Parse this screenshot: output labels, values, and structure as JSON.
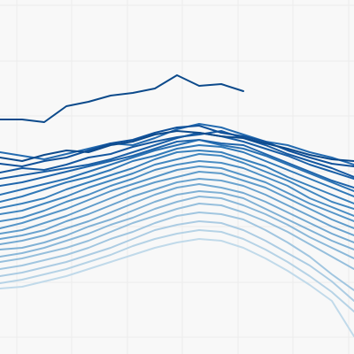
{
  "chart_data": {
    "type": "line",
    "x": [
      0,
      25,
      50,
      75,
      100,
      125,
      150,
      175,
      200,
      225,
      250,
      275,
      300,
      325,
      350,
      375,
      400
    ],
    "xlim": [
      0,
      400
    ],
    "ylim": [
      0,
      400
    ],
    "xticks": [
      19,
      81,
      144,
      206,
      269,
      331,
      394
    ],
    "yticks": [
      19,
      81,
      144,
      206,
      269,
      331,
      394
    ],
    "grid": true,
    "series": [
      {
        "color": "#0c4a8b",
        "values": [
          265,
          265,
          262,
          280,
          285,
          292,
          295,
          300,
          315,
          303,
          305,
          297,
          null,
          null,
          null,
          null,
          null
        ]
      },
      {
        "color": "#0d4a8c",
        "values": [
          222,
          218,
          225,
          230,
          228,
          236,
          240,
          248,
          252,
          250,
          246,
          244,
          238,
          232,
          225,
          220,
          218
        ]
      },
      {
        "color": "#10519a",
        "values": [
          215,
          212,
          218,
          222,
          230,
          238,
          242,
          250,
          256,
          258,
          250,
          246,
          240,
          230,
          222,
          215,
          212
        ]
      },
      {
        "color": "#1558a0",
        "values": [
          205,
          210,
          208,
          214,
          222,
          226,
          234,
          240,
          245,
          248,
          252,
          244,
          236,
          226,
          218,
          210,
          200
        ]
      },
      {
        "color": "#1a5fa6",
        "values": [
          198,
          202,
          206,
          210,
          214,
          220,
          228,
          236,
          244,
          250,
          246,
          240,
          232,
          224,
          214,
          206,
          198
        ]
      },
      {
        "color": "#1f65ab",
        "values": [
          190,
          194,
          200,
          206,
          212,
          218,
          224,
          232,
          240,
          242,
          238,
          236,
          226,
          216,
          206,
          196,
          188
        ]
      },
      {
        "color": "#246bb0",
        "values": [
          228,
          224,
          220,
          226,
          232,
          238,
          236,
          244,
          254,
          260,
          256,
          248,
          240,
          236,
          228,
          222,
          214
        ]
      },
      {
        "color": "#2a72b4",
        "values": [
          180,
          186,
          192,
          198,
          206,
          214,
          222,
          230,
          236,
          242,
          236,
          232,
          224,
          214,
          204,
          194,
          184
        ]
      },
      {
        "color": "#3079b8",
        "values": [
          172,
          178,
          186,
          194,
          200,
          208,
          218,
          224,
          232,
          236,
          234,
          228,
          218,
          208,
          198,
          188,
          178
        ]
      },
      {
        "color": "#3880bc",
        "values": [
          165,
          170,
          176,
          186,
          194,
          202,
          210,
          220,
          228,
          230,
          228,
          220,
          212,
          200,
          190,
          180,
          170
        ]
      },
      {
        "color": "#4187c0",
        "values": [
          158,
          162,
          170,
          178,
          188,
          196,
          204,
          214,
          220,
          226,
          224,
          216,
          206,
          196,
          184,
          172,
          164
        ]
      },
      {
        "color": "#4b8ec4",
        "values": [
          150,
          154,
          162,
          172,
          180,
          190,
          198,
          208,
          214,
          218,
          216,
          210,
          200,
          190,
          176,
          166,
          156
        ]
      },
      {
        "color": "#5595c8",
        "values": [
          142,
          148,
          156,
          164,
          174,
          184,
          192,
          200,
          208,
          212,
          210,
          202,
          194,
          182,
          170,
          160,
          150
        ]
      },
      {
        "color": "#5f9ccb",
        "values": [
          136,
          140,
          148,
          156,
          166,
          176,
          186,
          194,
          200,
          206,
          204,
          196,
          188,
          176,
          164,
          152,
          142
        ]
      },
      {
        "color": "#6aa3cf",
        "values": [
          130,
          134,
          140,
          150,
          158,
          168,
          178,
          186,
          194,
          198,
          196,
          190,
          180,
          168,
          156,
          144,
          134
        ]
      },
      {
        "color": "#75aad2",
        "values": [
          124,
          128,
          134,
          142,
          150,
          160,
          170,
          180,
          188,
          192,
          188,
          182,
          172,
          160,
          148,
          136,
          126
        ]
      },
      {
        "color": "#80b1d5",
        "values": [
          118,
          120,
          126,
          134,
          144,
          152,
          162,
          172,
          180,
          184,
          182,
          176,
          164,
          152,
          140,
          128,
          118
        ]
      },
      {
        "color": "#8bb8d9",
        "values": [
          110,
          114,
          120,
          128,
          136,
          146,
          154,
          164,
          172,
          178,
          176,
          168,
          158,
          146,
          132,
          120,
          108
        ]
      },
      {
        "color": "#96bfdc",
        "values": [
          104,
          108,
          114,
          120,
          128,
          138,
          148,
          156,
          164,
          170,
          168,
          160,
          150,
          138,
          124,
          110,
          96
        ]
      },
      {
        "color": "#a1c6e0",
        "values": [
          96,
          100,
          106,
          112,
          120,
          130,
          138,
          148,
          156,
          160,
          158,
          152,
          140,
          126,
          110,
          90,
          72
        ]
      },
      {
        "color": "#accce3",
        "values": [
          88,
          92,
          98,
          104,
          112,
          120,
          130,
          140,
          146,
          150,
          148,
          140,
          128,
          114,
          100,
          82,
          60
        ]
      },
      {
        "color": "#b6d3e6",
        "values": [
          80,
          84,
          90,
          96,
          104,
          112,
          122,
          130,
          136,
          140,
          138,
          130,
          118,
          104,
          88,
          70,
          48
        ]
      },
      {
        "color": "#c1daea",
        "values": [
          74,
          76,
          82,
          88,
          96,
          104,
          112,
          120,
          126,
          130,
          128,
          120,
          108,
          94,
          78,
          60,
          20
        ]
      }
    ]
  }
}
